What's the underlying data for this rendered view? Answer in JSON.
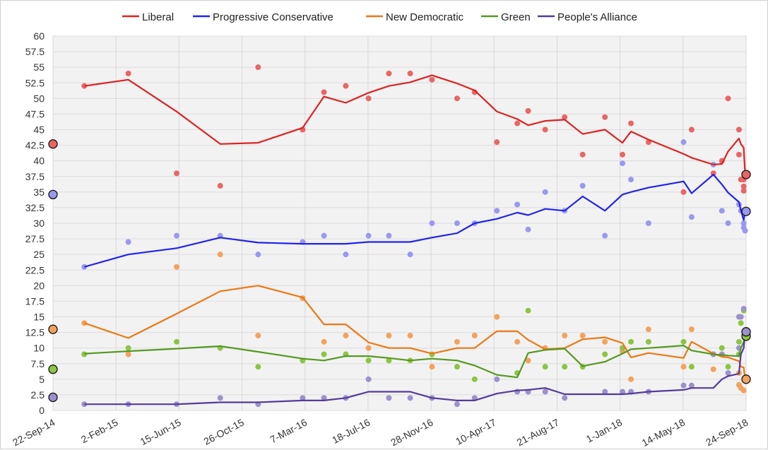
{
  "chart_data": {
    "type": "line",
    "title": "",
    "xlabel": "",
    "ylabel": "",
    "ylim": [
      0,
      60
    ],
    "y_ticks": [
      "0",
      "2.5",
      "5",
      "7.5",
      "10",
      "12.5",
      "15",
      "17.5",
      "20",
      "22.5",
      "25",
      "27.5",
      "30",
      "32.5",
      "35",
      "37.5",
      "40",
      "42.5",
      "45",
      "47.5",
      "50",
      "52.5",
      "55",
      "57.5",
      "60"
    ],
    "x_range": [
      "2014-09-22",
      "2018-09-24"
    ],
    "x_ticks": [
      {
        "date": "2014-09-22",
        "label": "22-Sep-14"
      },
      {
        "date": "2015-02-02",
        "label": "2-Feb-15"
      },
      {
        "date": "2015-06-15",
        "label": "15-Jun-15"
      },
      {
        "date": "2015-10-26",
        "label": "26-Oct-15"
      },
      {
        "date": "2016-03-07",
        "label": "7-Mar-16"
      },
      {
        "date": "2016-07-18",
        "label": "18-Jul-16"
      },
      {
        "date": "2016-11-28",
        "label": "28-Nov-16"
      },
      {
        "date": "2017-04-10",
        "label": "10-Apr-17"
      },
      {
        "date": "2017-08-21",
        "label": "21-Aug-17"
      },
      {
        "date": "2018-01-01",
        "label": "1-Jan-18"
      },
      {
        "date": "2018-05-14",
        "label": "14-May-18"
      },
      {
        "date": "2018-09-24",
        "label": "24-Sep-18"
      }
    ],
    "grid": true,
    "legend_position": "top",
    "dates": [
      "2014-11-27",
      "2015-02-28",
      "2015-06-10",
      "2015-09-10",
      "2015-11-29",
      "2016-03-02",
      "2016-04-16",
      "2016-06-01",
      "2016-07-19",
      "2016-08-31",
      "2016-10-15",
      "2016-11-30",
      "2017-01-22",
      "2017-02-28",
      "2017-04-16",
      "2017-05-29",
      "2017-06-21",
      "2017-07-27",
      "2017-09-06",
      "2017-10-14",
      "2017-11-30",
      "2018-01-06",
      "2018-01-24",
      "2018-03-02",
      "2018-05-15",
      "2018-06-01",
      "2018-07-17",
      "2018-08-04",
      "2018-08-17",
      "2018-09-09",
      "2018-09-13",
      "2018-09-19",
      "2018-09-22"
    ],
    "series": [
      {
        "name": "Liberal",
        "line_color": "#dd2222",
        "dot_color": "#e86666",
        "start_result": 42.7,
        "end_result": 37.8,
        "trend": [
          52,
          53,
          47.9,
          42.7,
          42.9,
          45.3,
          50.3,
          49.3,
          50.9,
          52,
          52.6,
          53.7,
          52.4,
          51.3,
          47.9,
          46.7,
          45.7,
          46.4,
          46.6,
          44.3,
          45,
          42.9,
          44.7,
          43.4,
          41.1,
          40.5,
          39.4,
          39.5,
          41.5,
          43.6,
          42.7,
          42.1,
          37.7
        ],
        "polls": [
          52,
          54,
          38,
          36,
          55,
          45,
          51,
          52,
          50,
          54,
          54,
          53,
          50,
          51,
          43,
          46,
          48,
          45,
          47,
          41,
          47,
          41,
          46,
          43,
          35,
          45,
          38,
          40,
          50,
          [
            45,
            41
          ],
          37,
          [
            37,
            35.9,
            35.2
          ],
          null
        ]
      },
      {
        "name": "Progressive Conservative",
        "line_color": "#2222ee",
        "dot_color": "#9999f0",
        "start_result": 34.6,
        "end_result": 31.9,
        "trend": [
          23,
          25,
          26,
          27.7,
          26.9,
          26.7,
          26.7,
          26.7,
          27,
          27,
          27,
          27.7,
          28.4,
          30,
          30.7,
          31.7,
          31.3,
          32.3,
          32,
          34.3,
          32,
          34.6,
          35,
          35.7,
          36.7,
          34.8,
          37.8,
          36.2,
          34.9,
          33.4,
          32.1,
          30.5,
          31.9
        ],
        "polls": [
          23,
          27,
          28,
          28,
          25,
          27,
          28,
          25,
          28,
          28,
          25,
          30,
          30,
          30,
          32,
          33,
          29,
          35,
          32,
          36,
          28,
          39.6,
          37,
          30,
          43,
          31,
          39.4,
          32,
          30,
          33,
          32,
          [
            30,
            29.3
          ],
          28.8
        ]
      },
      {
        "name": "New Democratic",
        "line_color": "#ee7711",
        "dot_color": "#f3a25e",
        "start_result": 13.0,
        "end_result": 5.0,
        "trend": [
          14,
          11.6,
          15.5,
          19.1,
          20,
          18.1,
          13.8,
          13.8,
          10.9,
          10,
          10,
          9.1,
          10,
          10,
          12.7,
          12.7,
          11.3,
          9.8,
          10,
          11.4,
          11.7,
          10.8,
          8.5,
          9.2,
          8.4,
          11,
          9.1,
          8.6,
          8.5,
          7.9,
          7,
          6.9,
          5
        ],
        "polls": [
          14,
          9,
          23,
          25,
          12,
          18,
          11,
          12,
          10,
          12,
          12,
          7,
          11,
          12,
          15,
          11,
          8,
          10,
          12,
          12,
          11,
          9.5,
          5,
          13,
          7,
          13,
          6.6,
          null,
          null,
          [
            6,
            4.1
          ],
          3.6,
          3.2,
          null
        ]
      },
      {
        "name": "Green",
        "line_color": "#559922",
        "dot_color": "#8cc444",
        "start_result": 6.6,
        "end_result": 11.9,
        "trend": [
          9.1,
          9.5,
          9.9,
          10.3,
          9.4,
          8.3,
          8,
          8.7,
          8.7,
          8.4,
          8,
          8.3,
          8,
          7.2,
          5.7,
          5.3,
          9.2,
          9.7,
          9.9,
          7.1,
          7.8,
          9.1,
          9.8,
          10,
          10.4,
          9.6,
          9,
          8.9,
          8.8,
          8.7,
          10,
          11,
          11.8
        ],
        "polls": [
          9,
          10,
          11,
          10,
          7,
          8,
          9,
          9,
          8,
          8,
          8,
          9,
          7,
          5,
          null,
          6,
          16,
          7,
          7,
          7,
          9,
          10,
          11,
          11,
          11,
          7,
          9,
          10,
          7,
          [
            11,
            9
          ],
          14,
          16,
          null
        ]
      },
      {
        "name": "People's Alliance",
        "line_color": "#553b99",
        "dot_color": "#9d90cc",
        "start_result": 2.1,
        "end_result": 12.6,
        "trend": [
          1,
          1,
          1,
          1.3,
          1.3,
          1.6,
          1.6,
          2,
          3,
          3,
          3,
          2,
          1.6,
          1.6,
          2.7,
          3.2,
          3.3,
          3.6,
          2.6,
          2.6,
          2.6,
          2.6,
          2.7,
          3,
          3.3,
          3.6,
          3.6,
          5,
          5.5,
          5.9,
          9,
          10,
          12.6
        ],
        "polls": [
          1,
          1,
          1,
          2,
          1,
          2,
          2,
          2,
          5,
          2,
          2,
          2,
          1,
          2,
          5,
          3,
          3,
          3,
          2,
          null,
          3,
          3,
          3,
          3,
          4,
          4,
          9,
          9,
          6,
          [
            10,
            15
          ],
          15,
          16.3,
          null
        ]
      }
    ]
  }
}
